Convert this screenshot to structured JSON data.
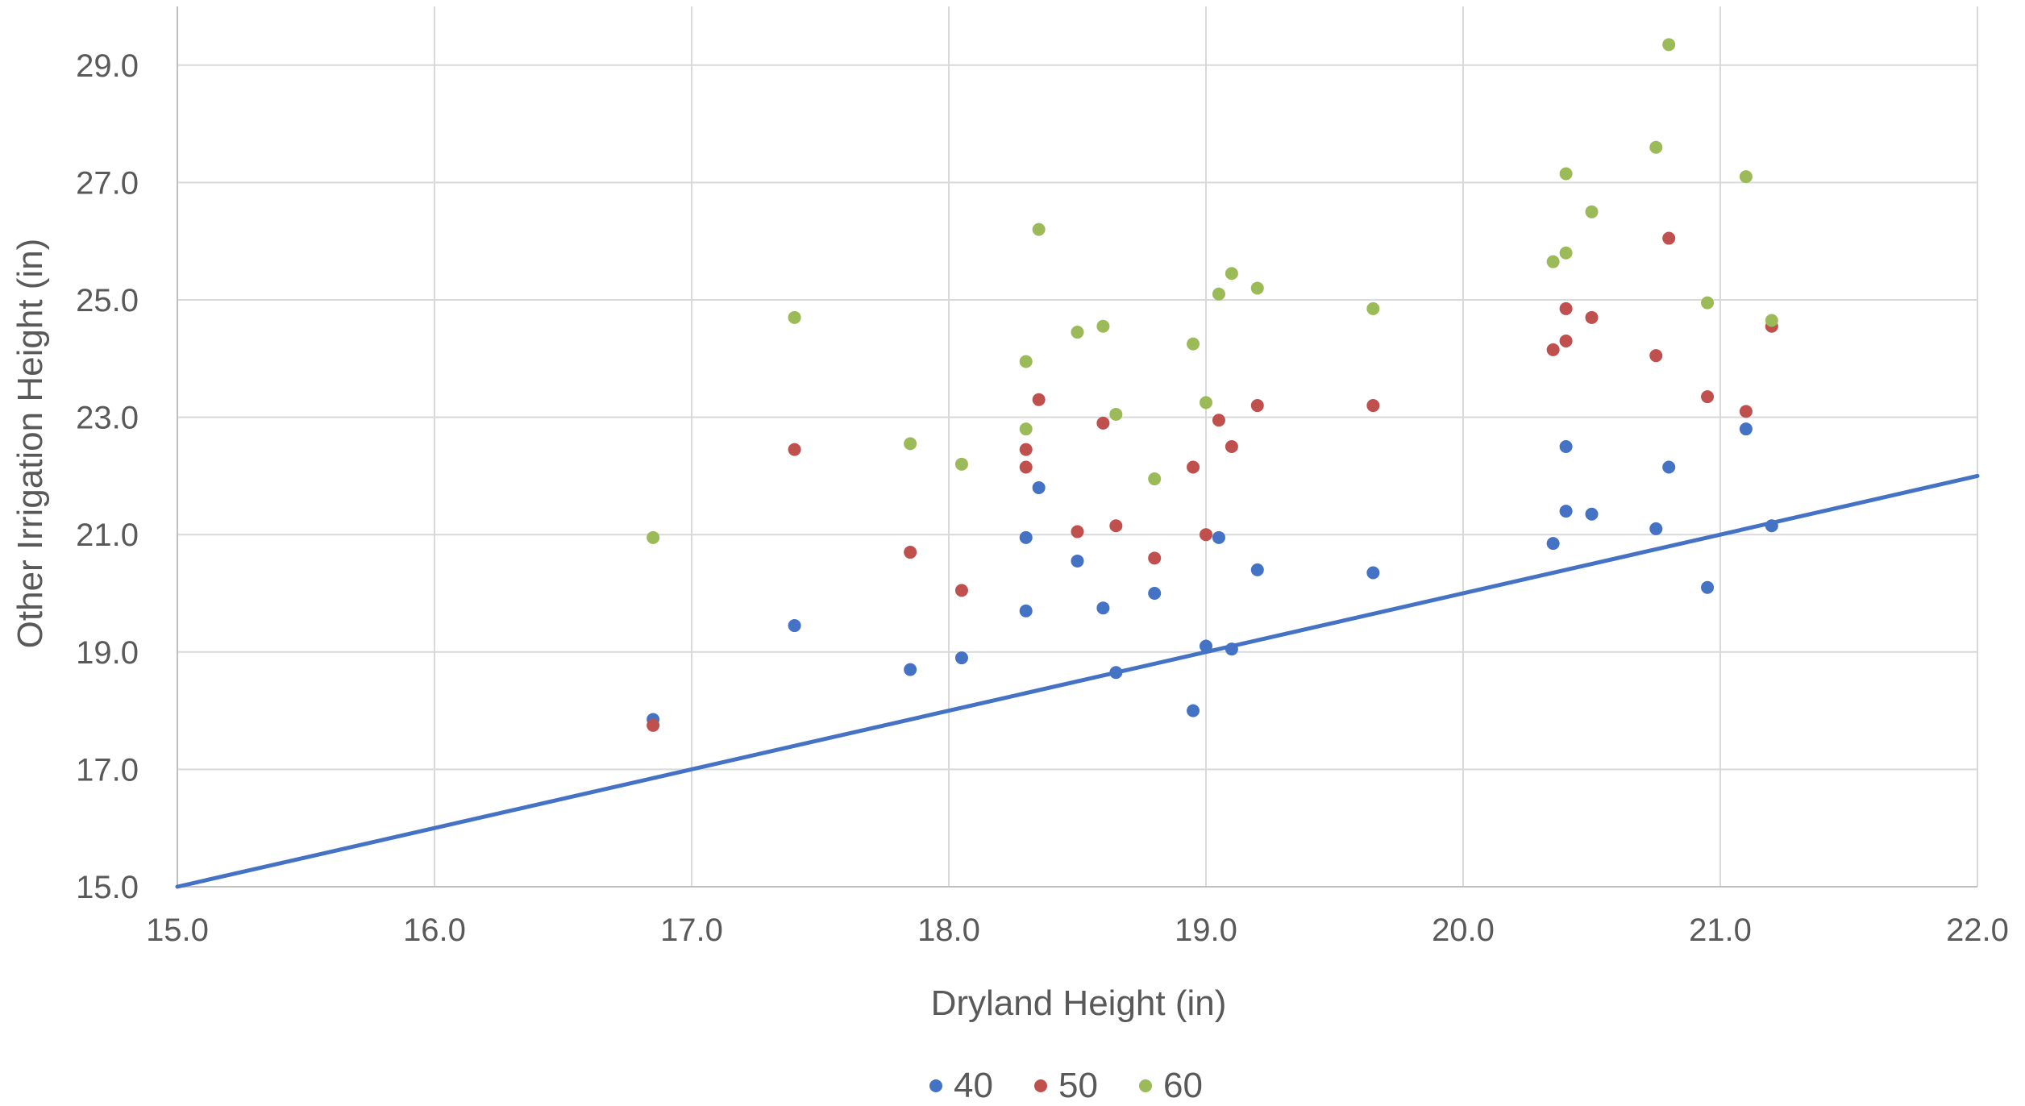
{
  "chart_data": {
    "type": "scatter",
    "title": "",
    "xlabel": "Dryland Height (in)",
    "ylabel": "Other Irrigation Height (in)",
    "xlim": [
      15,
      22
    ],
    "ylim": [
      15,
      30
    ],
    "xticks": [
      15,
      16,
      17,
      18,
      19,
      20,
      21,
      22
    ],
    "yticks": [
      15,
      17,
      19,
      21,
      23,
      25,
      27,
      29
    ],
    "tick_decimals": 1,
    "grid": true,
    "legend_position": "bottom",
    "x": [
      16.85,
      17.4,
      17.85,
      18.05,
      18.3,
      18.3,
      18.35,
      18.5,
      18.6,
      18.65,
      18.8,
      18.95,
      19.0,
      19.05,
      19.1,
      19.2,
      19.65,
      20.35,
      20.4,
      20.4,
      20.5,
      20.75,
      20.8,
      20.95,
      21.1,
      21.2
    ],
    "series": [
      {
        "name": "40",
        "color": "#4472c4",
        "y": [
          17.85,
          19.45,
          18.7,
          18.9,
          19.7,
          20.95,
          21.8,
          20.55,
          19.75,
          18.65,
          20.0,
          18.0,
          19.1,
          20.95,
          19.05,
          20.4,
          20.35,
          20.85,
          21.4,
          22.5,
          21.35,
          21.1,
          22.15,
          20.1,
          22.8,
          21.15
        ]
      },
      {
        "name": "50",
        "color": "#c0504d",
        "y": [
          17.75,
          22.45,
          20.7,
          20.05,
          22.15,
          22.45,
          23.3,
          21.05,
          22.9,
          21.15,
          20.6,
          22.15,
          21.0,
          22.95,
          22.5,
          23.2,
          23.2,
          24.15,
          24.3,
          24.85,
          24.7,
          24.05,
          26.05,
          23.35,
          23.1,
          24.55
        ]
      },
      {
        "name": "60",
        "color": "#9bbb59",
        "y": [
          20.95,
          24.7,
          22.55,
          22.2,
          23.95,
          22.8,
          26.2,
          24.45,
          24.55,
          23.05,
          21.95,
          24.25,
          23.25,
          25.1,
          25.45,
          25.2,
          24.85,
          25.65,
          25.8,
          27.15,
          26.5,
          27.6,
          29.35,
          24.95,
          27.1,
          24.65
        ]
      }
    ],
    "reference_line": {
      "color": "#4472c4",
      "x": [
        15,
        22
      ],
      "y": [
        15,
        22
      ]
    }
  }
}
